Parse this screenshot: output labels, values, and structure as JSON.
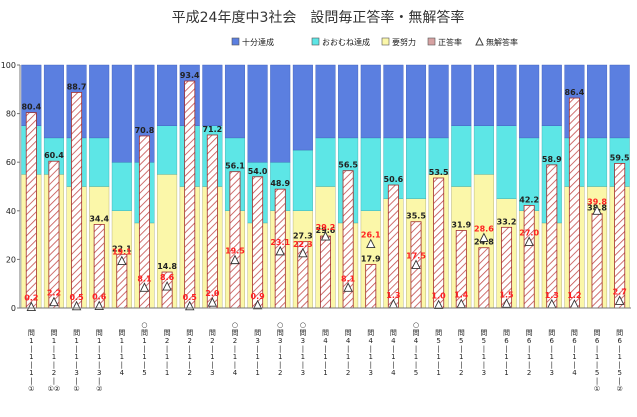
{
  "chart_data": {
    "type": "bar",
    "title": "平成24年度中3社会　設問毎正答率・無解答率",
    "ylim": [
      0,
      100
    ],
    "yticks": [
      0,
      20,
      40,
      60,
      80,
      100
    ],
    "legend_position": "top-right",
    "legend": [
      {
        "key": "excellent",
        "label": "十分達成",
        "color": "#5b7fe0"
      },
      {
        "key": "good",
        "label": "おおむね達成",
        "color": "#5de6e6"
      },
      {
        "key": "effort",
        "label": "要努力",
        "color": "#fbf7a9"
      },
      {
        "key": "correct",
        "label": "正答率",
        "color": "#d6a2a2"
      },
      {
        "key": "none",
        "label": "無解答率",
        "color": "#a6a6a6"
      }
    ],
    "categories": [
      {
        "top": "",
        "lines": [
          "問",
          "1",
          "|",
          "1",
          "|",
          "1",
          "|",
          "①"
        ]
      },
      {
        "top": "",
        "lines": [
          "問",
          "1",
          "|",
          "1",
          "|",
          "2",
          "|",
          "①②"
        ]
      },
      {
        "top": "",
        "lines": [
          "問",
          "1",
          "|",
          "1",
          "|",
          "3",
          "|",
          "①"
        ]
      },
      {
        "top": "",
        "lines": [
          "問",
          "1",
          "|",
          "1",
          "|",
          "3",
          "|",
          "②"
        ]
      },
      {
        "top": "",
        "lines": [
          "問",
          "1",
          "|",
          "1",
          "|",
          "4"
        ]
      },
      {
        "top": "○",
        "lines": [
          "問",
          "1",
          "|",
          "1",
          "|",
          "5"
        ]
      },
      {
        "top": "",
        "lines": [
          "問",
          "2",
          "|",
          "1",
          "|",
          "1"
        ]
      },
      {
        "top": "",
        "lines": [
          "問",
          "2",
          "|",
          "1",
          "|",
          "2"
        ]
      },
      {
        "top": "",
        "lines": [
          "問",
          "2",
          "|",
          "1",
          "|",
          "3"
        ]
      },
      {
        "top": "○",
        "lines": [
          "問",
          "2",
          "|",
          "1",
          "|",
          "4"
        ]
      },
      {
        "top": "",
        "lines": [
          "問",
          "3",
          "|",
          "1",
          "|",
          "1"
        ]
      },
      {
        "top": "○",
        "lines": [
          "問",
          "3",
          "|",
          "1",
          "|",
          "2"
        ]
      },
      {
        "top": "○",
        "lines": [
          "問",
          "3",
          "|",
          "1",
          "|",
          "3"
        ]
      },
      {
        "top": "",
        "lines": [
          "問",
          "4",
          "|",
          "1",
          "|",
          "1"
        ]
      },
      {
        "top": "",
        "lines": [
          "問",
          "4",
          "|",
          "1",
          "|",
          "2"
        ]
      },
      {
        "top": "",
        "lines": [
          "問",
          "4",
          "|",
          "1",
          "|",
          "3"
        ]
      },
      {
        "top": "",
        "lines": [
          "問",
          "4",
          "|",
          "1",
          "|",
          "4"
        ]
      },
      {
        "top": "○",
        "lines": [
          "問",
          "4",
          "|",
          "1",
          "|",
          "5"
        ]
      },
      {
        "top": "",
        "lines": [
          "問",
          "5",
          "|",
          "1",
          "|",
          "1"
        ]
      },
      {
        "top": "",
        "lines": [
          "問",
          "5",
          "|",
          "1",
          "|",
          "2"
        ]
      },
      {
        "top": "",
        "lines": [
          "問",
          "5",
          "|",
          "1",
          "|",
          "3"
        ]
      },
      {
        "top": "",
        "lines": [
          "問",
          "6",
          "|",
          "1",
          "|",
          "1"
        ]
      },
      {
        "top": "",
        "lines": [
          "問",
          "6",
          "|",
          "1",
          "|",
          "2"
        ]
      },
      {
        "top": "",
        "lines": [
          "問",
          "6",
          "|",
          "1",
          "|",
          "3"
        ]
      },
      {
        "top": "",
        "lines": [
          "問",
          "6",
          "|",
          "1",
          "|",
          "4"
        ]
      },
      {
        "top": "",
        "lines": [
          "問",
          "6",
          "|",
          "1",
          "|",
          "5",
          "|",
          "①"
        ]
      },
      {
        "top": "",
        "lines": [
          "問",
          "6",
          "|",
          "1",
          "|",
          "5",
          "|",
          "②"
        ]
      }
    ],
    "effort_top": [
      55,
      55,
      50,
      50,
      40,
      35,
      55,
      50,
      50,
      40,
      35,
      40,
      40,
      50,
      35,
      40,
      45,
      45,
      55,
      50,
      55,
      45,
      40,
      35,
      50,
      50,
      50
    ],
    "good_top": [
      75,
      70,
      70,
      70,
      60,
      60,
      75,
      75,
      75,
      70,
      60,
      60,
      65,
      70,
      70,
      70,
      70,
      70,
      70,
      75,
      75,
      75,
      70,
      75,
      70,
      70,
      70
    ],
    "correct_rate": [
      80.4,
      60.4,
      88.7,
      34.4,
      22.1,
      70.8,
      14.8,
      93.4,
      71.2,
      56.1,
      54.0,
      48.9,
      27.3,
      29.6,
      56.5,
      17.9,
      50.6,
      35.5,
      53.5,
      31.9,
      24.8,
      33.2,
      42.2,
      58.9,
      86.4,
      38.8,
      59.5
    ],
    "no_answer_rate": [
      0.2,
      2.2,
      0.5,
      0.6,
      19.1,
      8.1,
      8.6,
      0.5,
      2.0,
      19.5,
      0.9,
      23.1,
      22.3,
      29.2,
      8.1,
      26.1,
      1.3,
      17.5,
      1.0,
      1.4,
      28.6,
      1.5,
      27.0,
      1.3,
      1.2,
      39.8,
      2.7
    ],
    "correct_label_text": [
      "80.4",
      "60.4",
      "88.7",
      "34.4",
      "22.1",
      "70.8",
      "14.8",
      "93.4",
      "71.2",
      "56.1",
      "54.0",
      "48.9",
      "27.3",
      "29.6",
      "56.5",
      "17.9",
      "50.6",
      "35.5",
      "53.5",
      "31.9",
      "24.8",
      "33.2",
      "42.2",
      "58.9",
      "86.4",
      "38.8",
      "59.5"
    ],
    "no_answer_label_text": [
      "0.2",
      "2.2",
      "0.5",
      "0.6",
      "19.1",
      "8.1",
      "8.6",
      "0.5",
      "2.0",
      "19.5",
      "0.9",
      "23.1",
      "22.3",
      "29.2",
      "8.1",
      "26.1",
      "1.3",
      "17.5",
      "1.0",
      "1.4",
      "28.6",
      "1.5",
      "27.0",
      "1.3",
      "1.2",
      "39.8",
      "2.7"
    ],
    "tick_labels": [
      "0",
      "20",
      "40",
      "60",
      "80",
      "100"
    ]
  }
}
